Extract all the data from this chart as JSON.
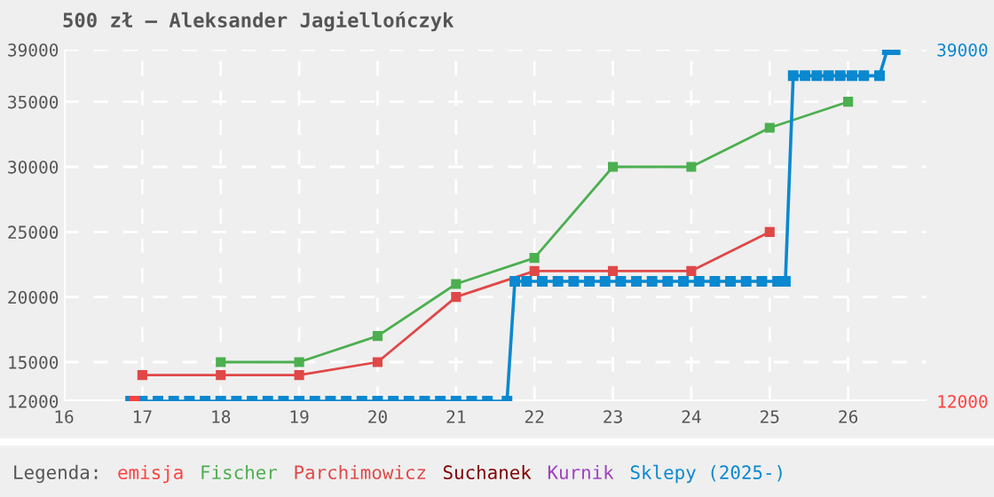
{
  "chart_data": {
    "type": "line",
    "title": "500 zł – Aleksander Jagiellończyk",
    "legend_title": "Legenda:",
    "legend": "bottom",
    "grid": true,
    "marker": "square",
    "line_style": "solid",
    "xlim": [
      16,
      27
    ],
    "xticks": [
      16,
      17,
      18,
      19,
      20,
      21,
      22,
      23,
      24,
      25,
      26
    ],
    "ylim": [
      12000,
      39000
    ],
    "yticks": [
      12000,
      15000,
      20000,
      25000,
      30000,
      35000,
      39000
    ],
    "y2lim": [
      12000,
      39000
    ],
    "y2ticks": [
      12000,
      39000
    ],
    "series": [
      {
        "name": "emisja",
        "color": "#ff4040",
        "type": "scatter",
        "x": [
          16.9
        ],
        "values": [
          12000
        ]
      },
      {
        "name": "Fischer",
        "color": "#4caf50",
        "x": [
          18,
          19,
          20,
          21,
          22,
          23,
          24,
          25,
          26
        ],
        "values": [
          15000,
          15000,
          17000,
          21000,
          23000,
          30000,
          30000,
          33000,
          35000
        ]
      },
      {
        "name": "Parchimowicz",
        "color": "#e04848",
        "x": [
          17,
          18,
          19,
          20,
          21,
          22,
          23,
          24,
          25
        ],
        "values": [
          14000,
          14000,
          14000,
          15000,
          20000,
          22000,
          22000,
          22000,
          25000
        ]
      },
      {
        "name": "Suchanek",
        "color": "#800000"
      },
      {
        "name": "Kurnik",
        "color": "#a040c0"
      },
      {
        "name": "Sklepy (2025-)",
        "color": "#0a88d0",
        "x": [
          16.85,
          17.0,
          17.2,
          17.4,
          17.6,
          17.8,
          18.0,
          18.2,
          18.4,
          18.6,
          18.8,
          19.0,
          19.2,
          19.4,
          19.6,
          19.8,
          20.0,
          20.2,
          20.4,
          20.6,
          20.8,
          21.0,
          21.2,
          21.4,
          21.65,
          21.75,
          21.9,
          22.1,
          22.3,
          22.5,
          22.7,
          22.9,
          23.1,
          23.3,
          23.5,
          23.7,
          23.9,
          24.1,
          24.3,
          24.5,
          24.7,
          24.9,
          25.1,
          25.2,
          25.3,
          25.45,
          25.6,
          25.75,
          25.9,
          26.05,
          26.2,
          26.4,
          26.5,
          26.6
        ],
        "values": [
          12000,
          12000,
          12000,
          12000,
          12000,
          12000,
          12000,
          12000,
          12000,
          12000,
          12000,
          12000,
          12000,
          12000,
          12000,
          12000,
          12000,
          12000,
          12000,
          12000,
          12000,
          12000,
          12000,
          12000,
          12000,
          21200,
          21200,
          21200,
          21200,
          21200,
          21200,
          21200,
          21200,
          21200,
          21200,
          21200,
          21200,
          21200,
          21200,
          21200,
          21200,
          21200,
          21200,
          21200,
          37000,
          37000,
          37000,
          37000,
          37000,
          37000,
          37000,
          37000,
          39000,
          39000
        ]
      }
    ]
  }
}
